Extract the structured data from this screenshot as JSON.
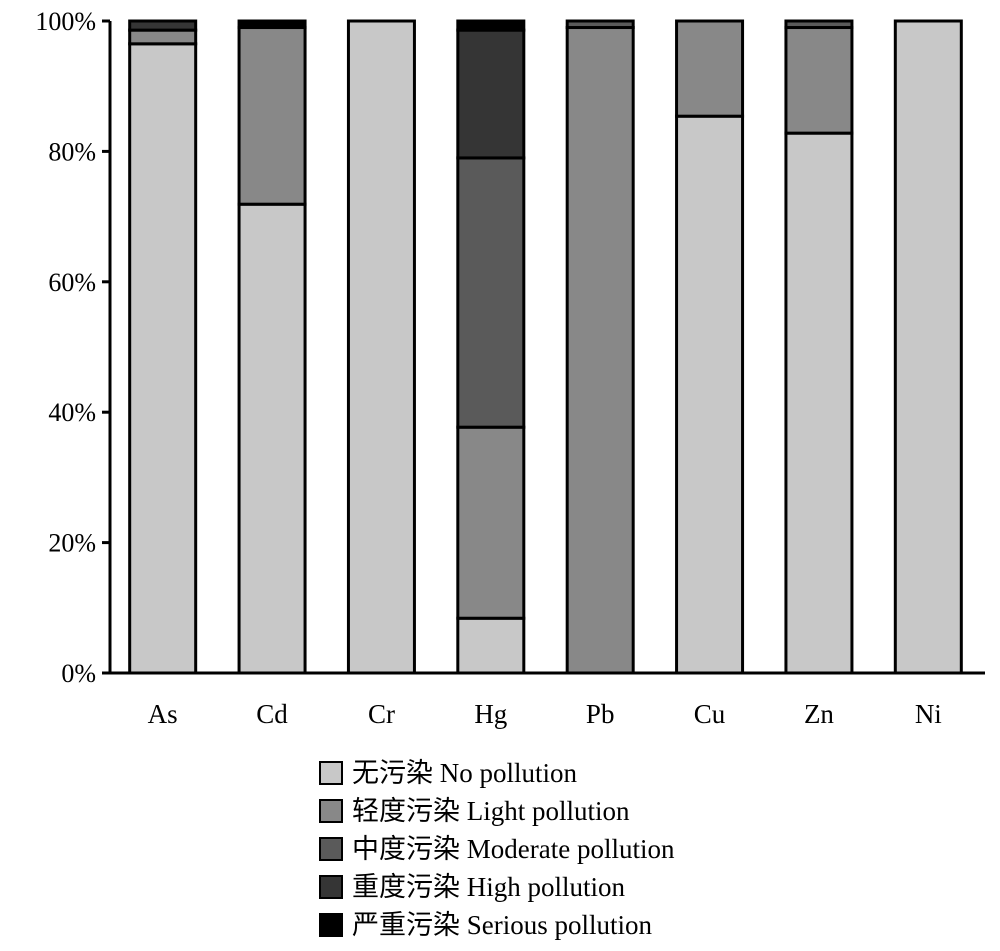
{
  "chart_data": {
    "type": "bar",
    "stacked": true,
    "title": "",
    "xlabel": "",
    "ylabel": "",
    "ylim": [
      0,
      100
    ],
    "yticks": [
      "0%",
      "20%",
      "40%",
      "60%",
      "80%",
      "100%"
    ],
    "categories": [
      "As",
      "Cd",
      "Cr",
      "Hg",
      "Pb",
      "Cu",
      "Zn",
      "Ni"
    ],
    "series": [
      {
        "name": "无污染 No pollution",
        "color": "#c8c8c8",
        "values": [
          96.5,
          71.9,
          100,
          8.4,
          0,
          85.4,
          82.8,
          100
        ]
      },
      {
        "name": "轻度污染 Light pollution",
        "color": "#888888",
        "values": [
          2.1,
          27.1,
          0,
          29.3,
          99.0,
          14.6,
          16.2,
          0
        ]
      },
      {
        "name": "中度污染 Moderate pollution",
        "color": "#5a5a5a",
        "values": [
          0,
          0,
          0,
          41.3,
          1.0,
          0,
          1.0,
          0
        ]
      },
      {
        "name": "重度污染 High pollution",
        "color": "#353535",
        "values": [
          1.4,
          0,
          0,
          19.6,
          0,
          0,
          0,
          0
        ]
      },
      {
        "name": "严重污染 Serious pollution",
        "color": "#000000",
        "values": [
          0,
          1.0,
          0,
          1.4,
          0,
          0,
          0,
          0
        ]
      }
    ],
    "legend_position": "bottom-center",
    "grid": false
  }
}
